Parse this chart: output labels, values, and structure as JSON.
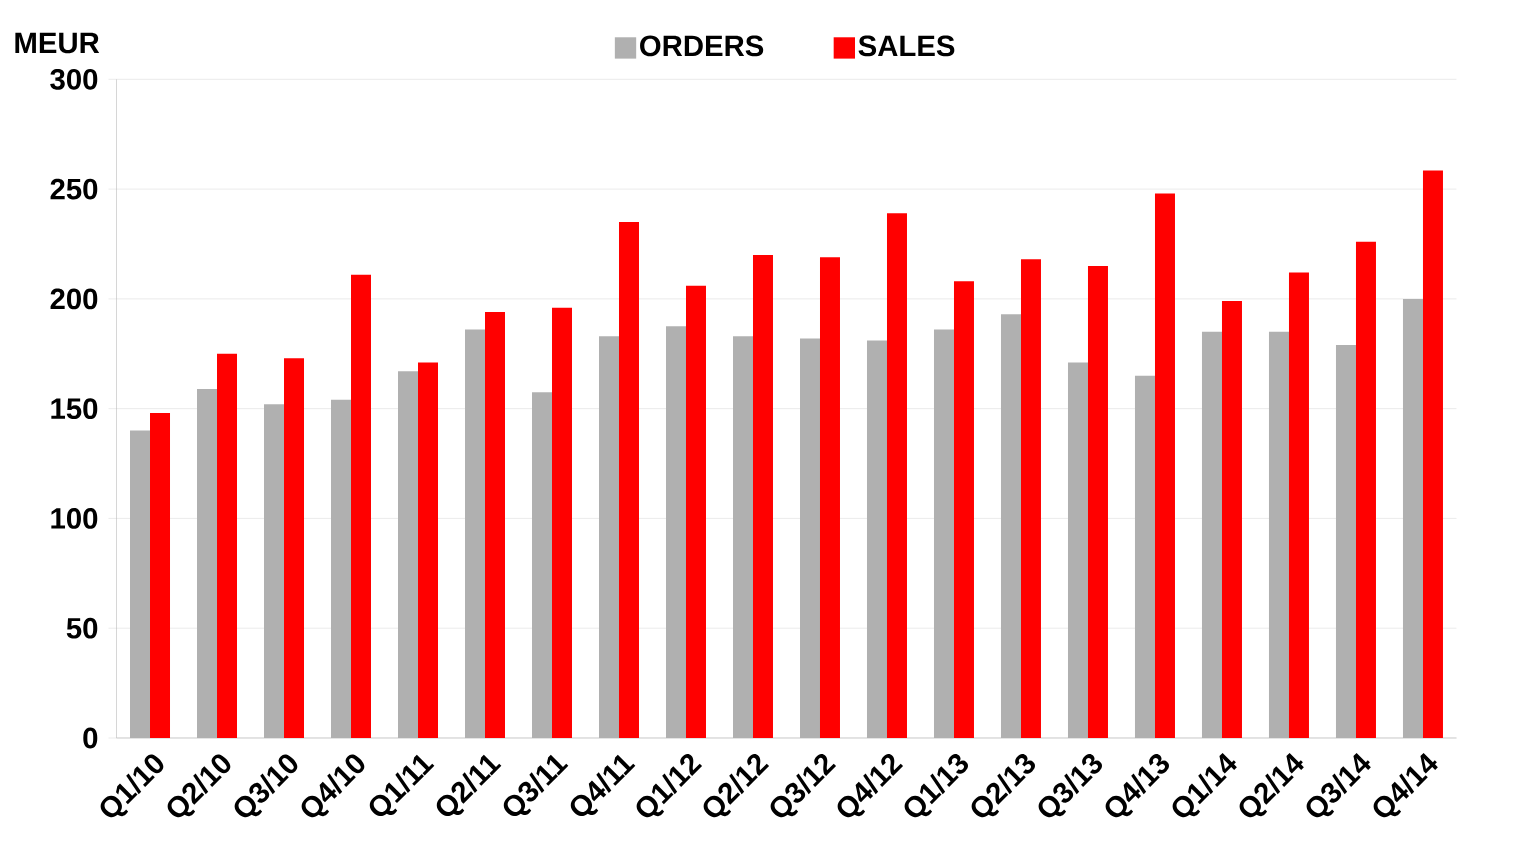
{
  "chart_data": {
    "type": "bar",
    "ylabel": "MEUR",
    "categories": [
      "Q1/10",
      "Q2/10",
      "Q3/10",
      "Q4/10",
      "Q1/11",
      "Q2/11",
      "Q3/11",
      "Q4/11",
      "Q1/12",
      "Q2/12",
      "Q3/12",
      "Q4/12",
      "Q1/13",
      "Q2/13",
      "Q3/13",
      "Q4/13",
      "Q1/14",
      "Q2/14",
      "Q3/14",
      "Q4/14"
    ],
    "series": [
      {
        "name": "ORDERS",
        "color": "#b0b0b0",
        "values": [
          140,
          159,
          152,
          154,
          167,
          186,
          157.5,
          183,
          187.5,
          183,
          182,
          181,
          186,
          193,
          171,
          165,
          185,
          185,
          179,
          200
        ]
      },
      {
        "name": "SALES",
        "color": "#ff0000",
        "values": [
          148,
          175,
          173,
          211,
          171,
          194,
          196,
          235,
          206,
          220,
          219,
          239,
          208,
          218,
          215,
          248,
          199,
          212,
          226,
          258.5
        ]
      }
    ],
    "ylim": [
      0,
      300
    ],
    "yticks": [
      0,
      50,
      100,
      150,
      200,
      250,
      300
    ],
    "grid": "y",
    "legend": "top"
  }
}
